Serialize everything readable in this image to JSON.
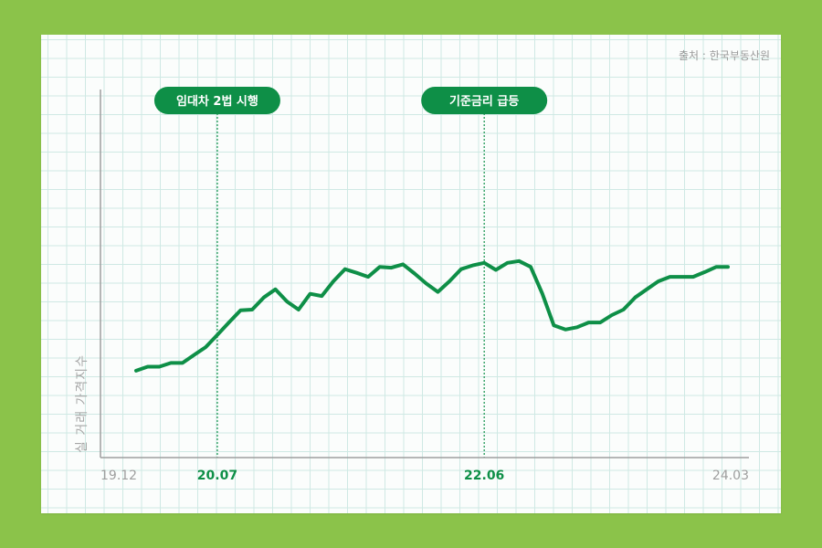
{
  "source": "출처 : 한국부동산원",
  "colors": {
    "background": "#8bc34a",
    "line": "#0e8f47",
    "axis": "#9e9e9e",
    "tick_muted": "#9e9e9e",
    "tick_highlight": "#0e8f47"
  },
  "chart_data": {
    "type": "line",
    "title": "",
    "xlabel": "",
    "ylabel": "실 거래 가격지수",
    "grid": true,
    "x_ticks": [
      {
        "label": "19.12",
        "highlight": false
      },
      {
        "label": "20.07",
        "highlight": true
      },
      {
        "label": "22.06",
        "highlight": true
      },
      {
        "label": "24.03",
        "highlight": false
      }
    ],
    "annotations": [
      {
        "label": "임대차 2법 시행",
        "at": "20.07"
      },
      {
        "label": "기준금리 급등",
        "at": "22.06"
      }
    ],
    "series": [
      {
        "x": [
          "19.12",
          "20.01",
          "20.02",
          "20.03",
          "20.04",
          "20.05",
          "20.06",
          "20.07",
          "20.08",
          "20.09",
          "20.10",
          "20.11",
          "20.12",
          "21.01",
          "21.02",
          "21.03",
          "21.04",
          "21.05",
          "21.06",
          "21.07",
          "21.08",
          "21.09",
          "21.10",
          "21.11",
          "21.12",
          "22.01",
          "22.02",
          "22.03",
          "22.04",
          "22.05",
          "22.06",
          "22.07",
          "22.08",
          "22.09",
          "22.10",
          "22.11",
          "22.12",
          "23.01",
          "23.02",
          "23.03",
          "23.04",
          "23.05",
          "23.06",
          "23.07",
          "23.08",
          "23.09",
          "23.10",
          "23.11",
          "23.12",
          "24.01",
          "24.02",
          "24.03"
        ],
        "y": [
          23.6,
          24.7,
          24.7,
          25.7,
          25.7,
          27.9,
          30.0,
          33.3,
          36.7,
          40.0,
          40.2,
          43.5,
          45.7,
          42.4,
          40.2,
          44.5,
          43.9,
          47.9,
          51.2,
          50.2,
          49.1,
          51.8,
          51.6,
          52.5,
          50.0,
          47.3,
          45.0,
          47.9,
          51.2,
          52.2,
          52.9,
          51.0,
          52.9,
          53.4,
          51.8,
          44.6,
          35.9,
          34.8,
          35.4,
          36.7,
          36.7,
          38.7,
          40.2,
          43.5,
          45.7,
          47.9,
          49.1,
          49.1,
          49.1,
          50.4,
          51.8,
          51.8
        ]
      }
    ]
  }
}
